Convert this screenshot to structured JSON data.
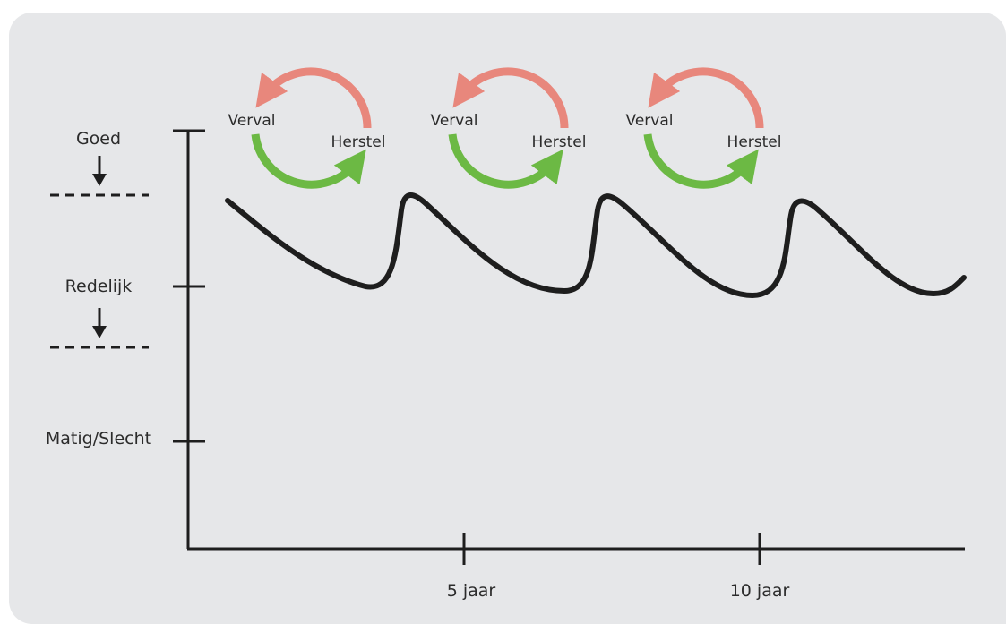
{
  "y_levels": [
    {
      "label": "Goed"
    },
    {
      "label": "Redelijk"
    },
    {
      "label": "Matig/Slecht"
    }
  ],
  "x_ticks": [
    {
      "label": "5 jaar"
    },
    {
      "label": "10 jaar"
    }
  ],
  "cycles": [
    {
      "decay_label": "Verval",
      "recovery_label": "Herstel"
    },
    {
      "decay_label": "Verval",
      "recovery_label": "Herstel"
    },
    {
      "decay_label": "Verval",
      "recovery_label": "Herstel"
    }
  ],
  "colors": {
    "background": "#e6e7e9",
    "decay_arrow": "#e8877c",
    "recovery_arrow": "#6cb944",
    "curve": "#1e1e1e",
    "axis": "#1e1e1e"
  }
}
